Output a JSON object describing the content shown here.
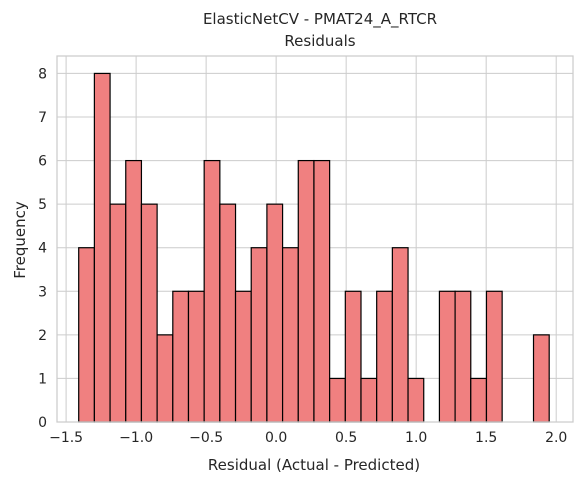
{
  "chart_data": {
    "type": "bar",
    "title_lines": [
      "ElasticNetCV - PMAT24_A_RTCR",
      "Residuals"
    ],
    "xlabel": "Residual (Actual - Predicted)",
    "ylabel": "Frequency",
    "x_ticks": [
      -1.5,
      -1.0,
      -0.5,
      0.0,
      0.5,
      1.0,
      1.5,
      2.0
    ],
    "x_tick_labels": [
      "−1.5",
      "−1.0",
      "−0.5",
      "0.0",
      "0.5",
      "1.0",
      "1.5",
      "2.0"
    ],
    "y_ticks": [
      0,
      1,
      2,
      3,
      4,
      5,
      6,
      7,
      8
    ],
    "xlim": [
      -1.565,
      2.12
    ],
    "ylim": [
      0,
      8.4
    ],
    "grid": true,
    "bar_color": "#f08080",
    "edge_color": "#000000",
    "bins": [
      {
        "x0": -1.41,
        "x1": -1.298,
        "count": 4
      },
      {
        "x0": -1.298,
        "x1": -1.186,
        "count": 8
      },
      {
        "x0": -1.186,
        "x1": -1.074,
        "count": 5
      },
      {
        "x0": -1.074,
        "x1": -0.962,
        "count": 6
      },
      {
        "x0": -0.962,
        "x1": -0.85,
        "count": 5
      },
      {
        "x0": -0.85,
        "x1": -0.738,
        "count": 2
      },
      {
        "x0": -0.738,
        "x1": -0.626,
        "count": 3
      },
      {
        "x0": -0.626,
        "x1": -0.514,
        "count": 3
      },
      {
        "x0": -0.514,
        "x1": -0.402,
        "count": 6
      },
      {
        "x0": -0.402,
        "x1": -0.29,
        "count": 5
      },
      {
        "x0": -0.29,
        "x1": -0.178,
        "count": 3
      },
      {
        "x0": -0.178,
        "x1": -0.066,
        "count": 4
      },
      {
        "x0": -0.066,
        "x1": 0.046,
        "count": 5
      },
      {
        "x0": 0.046,
        "x1": 0.158,
        "count": 4
      },
      {
        "x0": 0.158,
        "x1": 0.27,
        "count": 6
      },
      {
        "x0": 0.27,
        "x1": 0.382,
        "count": 6
      },
      {
        "x0": 0.382,
        "x1": 0.494,
        "count": 1
      },
      {
        "x0": 0.494,
        "x1": 0.606,
        "count": 3
      },
      {
        "x0": 0.606,
        "x1": 0.718,
        "count": 1
      },
      {
        "x0": 0.718,
        "x1": 0.83,
        "count": 3
      },
      {
        "x0": 0.83,
        "x1": 0.942,
        "count": 4
      },
      {
        "x0": 0.942,
        "x1": 1.054,
        "count": 1
      },
      {
        "x0": 1.054,
        "x1": 1.166,
        "count": 0
      },
      {
        "x0": 1.166,
        "x1": 1.278,
        "count": 3
      },
      {
        "x0": 1.278,
        "x1": 1.39,
        "count": 3
      },
      {
        "x0": 1.39,
        "x1": 1.502,
        "count": 1
      },
      {
        "x0": 1.502,
        "x1": 1.614,
        "count": 3
      },
      {
        "x0": 1.614,
        "x1": 1.726,
        "count": 0
      },
      {
        "x0": 1.726,
        "x1": 1.838,
        "count": 0
      },
      {
        "x0": 1.838,
        "x1": 1.95,
        "count": 2
      }
    ]
  }
}
